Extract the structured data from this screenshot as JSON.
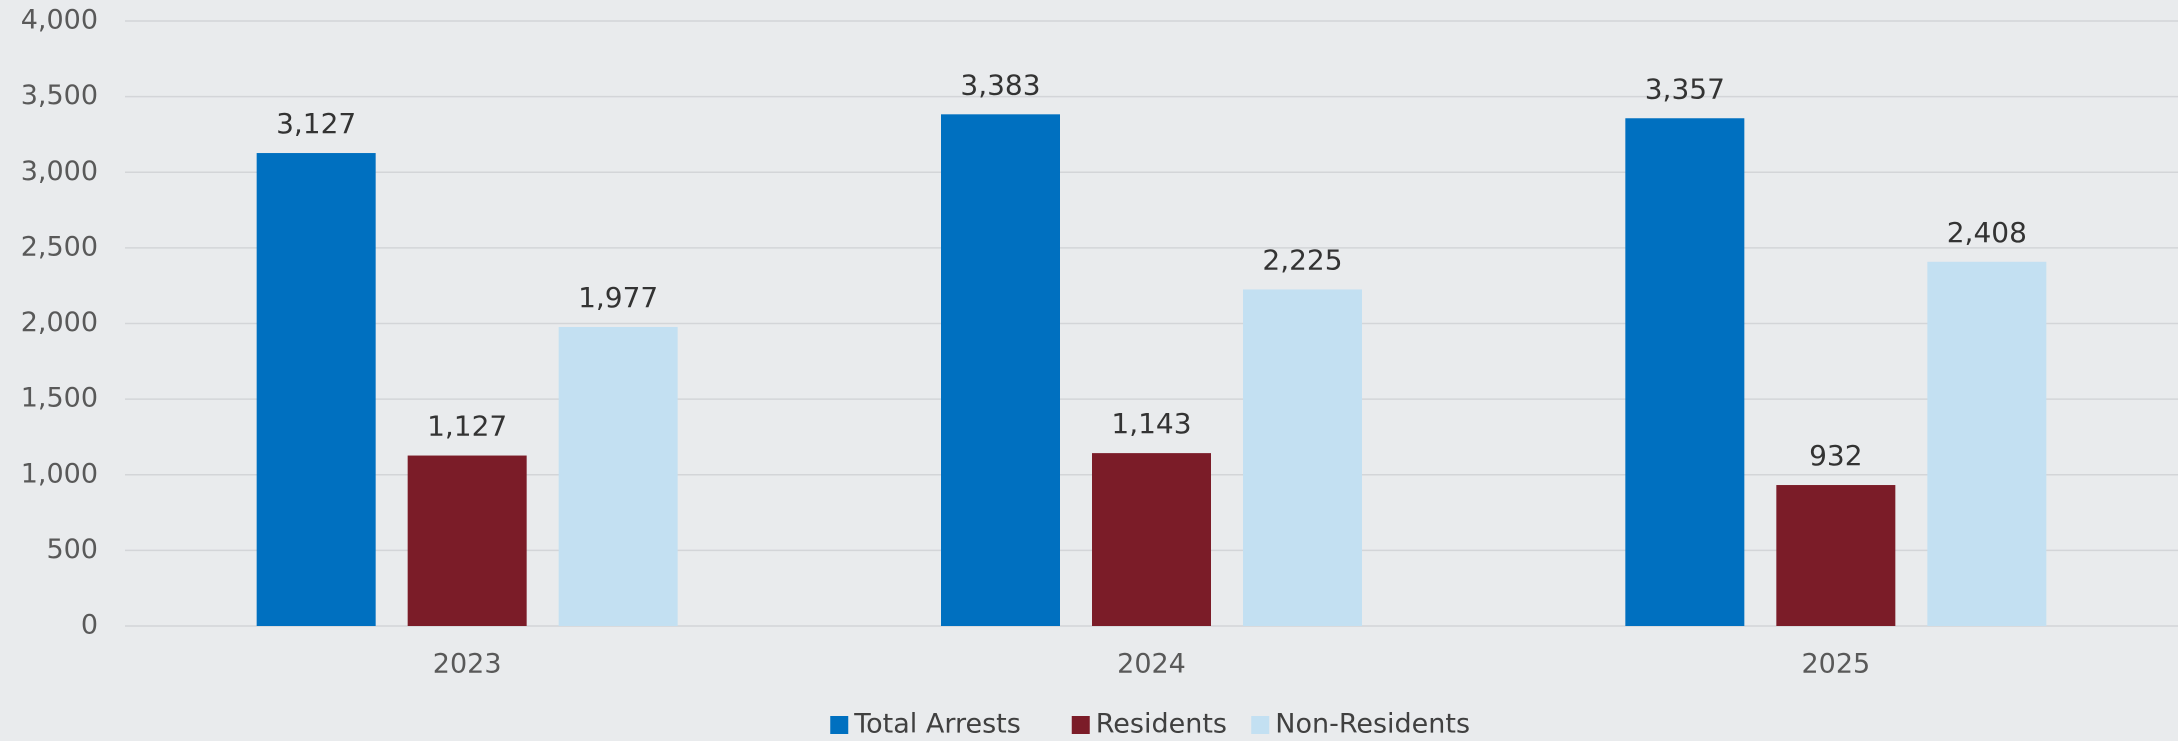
{
  "chart_data": {
    "type": "bar",
    "categories": [
      "2023",
      "2024",
      "2025"
    ],
    "series": [
      {
        "name": "Total Arrests",
        "color": "#0070c0",
        "values": [
          3127,
          3383,
          3357
        ],
        "value_labels": [
          "3,127",
          "3,383",
          "3,357"
        ]
      },
      {
        "name": "Residents",
        "color": "#7b1c28",
        "values": [
          1127,
          1143,
          932
        ],
        "value_labels": [
          "1,127",
          "1,143",
          "932"
        ]
      },
      {
        "name": "Non-Residents",
        "color": "#c3e0f2",
        "values": [
          1977,
          2225,
          2408
        ],
        "value_labels": [
          "1,977",
          "2,225",
          "2,408"
        ]
      }
    ],
    "ylim": [
      0,
      4000
    ],
    "yticks": [
      0,
      500,
      {
        "value": 1000,
        "label": "1,000"
      },
      {
        "value": 1500,
        "label": "1,500"
      },
      {
        "value": 2000,
        "label": "2,000"
      },
      {
        "value": 2500,
        "label": "2,500"
      },
      {
        "value": 3000,
        "label": "3,000"
      },
      {
        "value": 3500,
        "label": "3,500"
      },
      {
        "value": 4000,
        "label": "4,000"
      }
    ],
    "grid": true,
    "legend": "bottom"
  }
}
